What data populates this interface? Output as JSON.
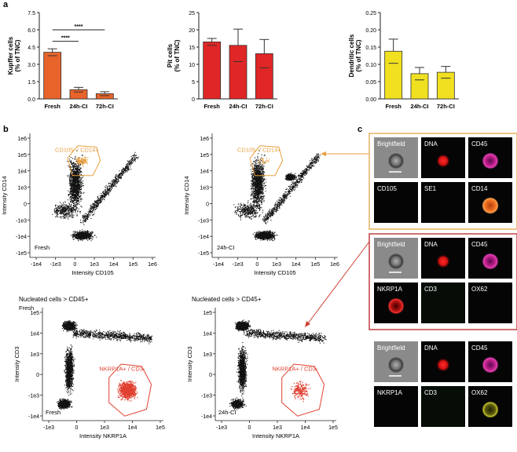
{
  "panel_labels": {
    "a": "a",
    "b": "b",
    "c": "c"
  },
  "colors": {
    "kupffer": "#e8642a",
    "pit": "#e02626",
    "dendritic": "#f0e020",
    "gate_orange": "#e8a040",
    "gate_red": "#e04030",
    "frame_orange": "#e8b060",
    "frame_red": "#c04040"
  },
  "chart_data": [
    {
      "type": "bar",
      "ylabel": "Kupffer cells\n(% of TNC)",
      "ylabel_lines": [
        "Kupffer cells",
        "(% of TNC)"
      ],
      "categories": [
        "Fresh",
        "24h-CI",
        "72h-CI"
      ],
      "values": [
        4.05,
        0.8,
        0.45
      ],
      "errors": [
        0.3,
        0.2,
        0.17
      ],
      "ylim": [
        0,
        7.5
      ],
      "yticks": [
        "0.0",
        "1.5",
        "3.0",
        "4.5",
        "6.0",
        "7.5"
      ],
      "annotations": [
        "****",
        "****"
      ]
    },
    {
      "type": "bar",
      "ylabel": "Pit cells\n(% of TNC)",
      "ylabel_lines": [
        "Pit cells",
        "(% of TNC)"
      ],
      "categories": [
        "Fresh",
        "24h-CI",
        "72h-CI"
      ],
      "values": [
        16.5,
        15.5,
        13.1
      ],
      "errors": [
        1.0,
        4.7,
        4.1
      ],
      "ylim": [
        0,
        25
      ],
      "yticks": [
        "0",
        "5",
        "10",
        "15",
        "20",
        "25"
      ]
    },
    {
      "type": "bar",
      "ylabel": "Dendritic cells\n(% of TNC)",
      "ylabel_lines": [
        "Dendritic cells",
        "(% of TNC)"
      ],
      "categories": [
        "Fresh",
        "24h-CI",
        "72h-CI"
      ],
      "values": [
        0.138,
        0.073,
        0.077
      ],
      "errors": [
        0.035,
        0.018,
        0.017
      ],
      "ylim": [
        0,
        0.25
      ],
      "yticks": [
        "0.00",
        "0.05",
        "0.10",
        "0.15",
        "0.20",
        "0.25"
      ]
    },
    {
      "type": "scatter",
      "xlabel": "Intensity CD105",
      "ylabel": "Intensity CD14",
      "xticks": [
        "-1e4",
        "-1e3",
        "0",
        "1e3",
        "1e4",
        "1e5",
        "1e6"
      ],
      "yticks": [
        "-1e5",
        "-1e4",
        "-1e3",
        "0",
        "1e3",
        "1e4",
        "1e5",
        "1e6"
      ],
      "condition": "Fresh",
      "gate_label": "CD105- / CD14+"
    },
    {
      "type": "scatter",
      "xlabel": "Intensity CD105",
      "ylabel": "Intensity CD14",
      "xticks": [
        "-1e4",
        "-1e3",
        "0",
        "1e3",
        "1e4",
        "1e5",
        "1e6"
      ],
      "yticks": [
        "-1e5",
        "-1e4",
        "-1e3",
        "0",
        "1e3",
        "1e4",
        "1e5",
        "1e6"
      ],
      "condition": "24h-CI",
      "gate_label": "CD105- / CD14+"
    },
    {
      "type": "scatter",
      "xlabel": "Intensity NKRP1A",
      "ylabel": "Intensity CD3",
      "xticks": [
        "-1e3",
        "0",
        "1e3",
        "1e4",
        "1e5"
      ],
      "yticks": [
        "-1e4",
        "-1e3",
        "0",
        "1e3",
        "1e4",
        "1e5"
      ],
      "header": "Nucleated cells > CD45+",
      "top_label": "Fresh",
      "condition": "Fresh",
      "gate_label": "NKRP1A+ / CD3-"
    },
    {
      "type": "scatter",
      "xlabel": "Intensity NKRP1A",
      "ylabel": "Intensity CD3",
      "xticks": [
        "-1e3",
        "0",
        "1e3",
        "1e4",
        "1e5"
      ],
      "yticks": [
        "-1e4",
        "-1e3",
        "0",
        "1e3",
        "1e4",
        "1e5"
      ],
      "header": "Nucleated cells > CD45+",
      "condition": "24h-CI",
      "gate_label": "NKRP1A+ / CD3-"
    }
  ],
  "image_panels": [
    {
      "frame": "orange",
      "tiles": [
        "Brightfield",
        "DNA",
        "CD45",
        "CD105",
        "SE1",
        "CD14"
      ]
    },
    {
      "frame": "red",
      "tiles": [
        "Brightfield",
        "DNA",
        "CD45",
        "NKRP1A",
        "CD3",
        "OX62"
      ]
    },
    {
      "frame": "none",
      "tiles": [
        "Brightfield",
        "DNA",
        "CD45",
        "NKRP1A",
        "CD3",
        "OX62"
      ]
    }
  ]
}
